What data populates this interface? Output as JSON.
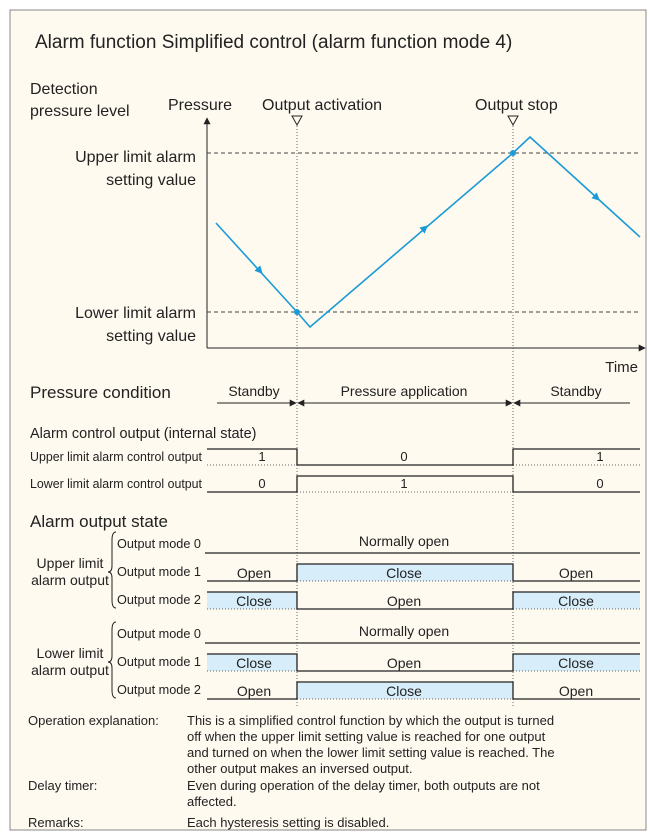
{
  "title": "Alarm function Simplified control (alarm function mode 4)",
  "graph": {
    "y_axis_label": [
      "Detection",
      "pressure level"
    ],
    "pressure_label": "Pressure",
    "events": [
      "Output activation",
      "Output stop"
    ],
    "upper_limit": [
      "Upper limit alarm",
      "setting value"
    ],
    "lower_limit": [
      "Lower limit alarm",
      "setting value"
    ],
    "x_axis_label": "Time"
  },
  "pressure_condition": {
    "label": "Pressure condition",
    "phases": [
      "Standby",
      "Pressure application",
      "Standby"
    ]
  },
  "control_output": {
    "heading": "Alarm control output (internal state)",
    "rows": [
      {
        "label": "Upper limit alarm control output",
        "states": [
          "1",
          "0",
          "1"
        ]
      },
      {
        "label": "Lower limit alarm control output",
        "states": [
          "0",
          "1",
          "0"
        ]
      }
    ]
  },
  "output_state": {
    "heading": "Alarm output state",
    "groups": [
      {
        "label": [
          "Upper limit",
          "alarm output"
        ],
        "modes": [
          {
            "name": "Output mode 0",
            "states": [
              "Normally open"
            ]
          },
          {
            "name": "Output mode 1",
            "states": [
              "Open",
              "Close",
              "Open"
            ]
          },
          {
            "name": "Output mode 2",
            "states": [
              "Close",
              "Open",
              "Close"
            ]
          }
        ]
      },
      {
        "label": [
          "Lower limit",
          "alarm output"
        ],
        "modes": [
          {
            "name": "Output mode 0",
            "states": [
              "Normally open"
            ]
          },
          {
            "name": "Output mode 1",
            "states": [
              "Close",
              "Open",
              "Close"
            ]
          },
          {
            "name": "Output mode 2",
            "states": [
              "Open",
              "Close",
              "Open"
            ]
          }
        ]
      }
    ]
  },
  "notes": [
    {
      "label": "Operation explanation:",
      "lines": [
        "This is a simplified control function by which the output is turned",
        "off when the upper limit setting value is reached for one output",
        "and turned on when the lower limit setting value is reached. The",
        "other output makes an inversed output."
      ]
    },
    {
      "label": "Delay timer:",
      "lines": [
        "Even during operation of the delay timer, both outputs are not",
        "affected."
      ]
    },
    {
      "label": "Remarks:",
      "lines": [
        "Each hysteresis setting is disabled."
      ]
    }
  ]
}
